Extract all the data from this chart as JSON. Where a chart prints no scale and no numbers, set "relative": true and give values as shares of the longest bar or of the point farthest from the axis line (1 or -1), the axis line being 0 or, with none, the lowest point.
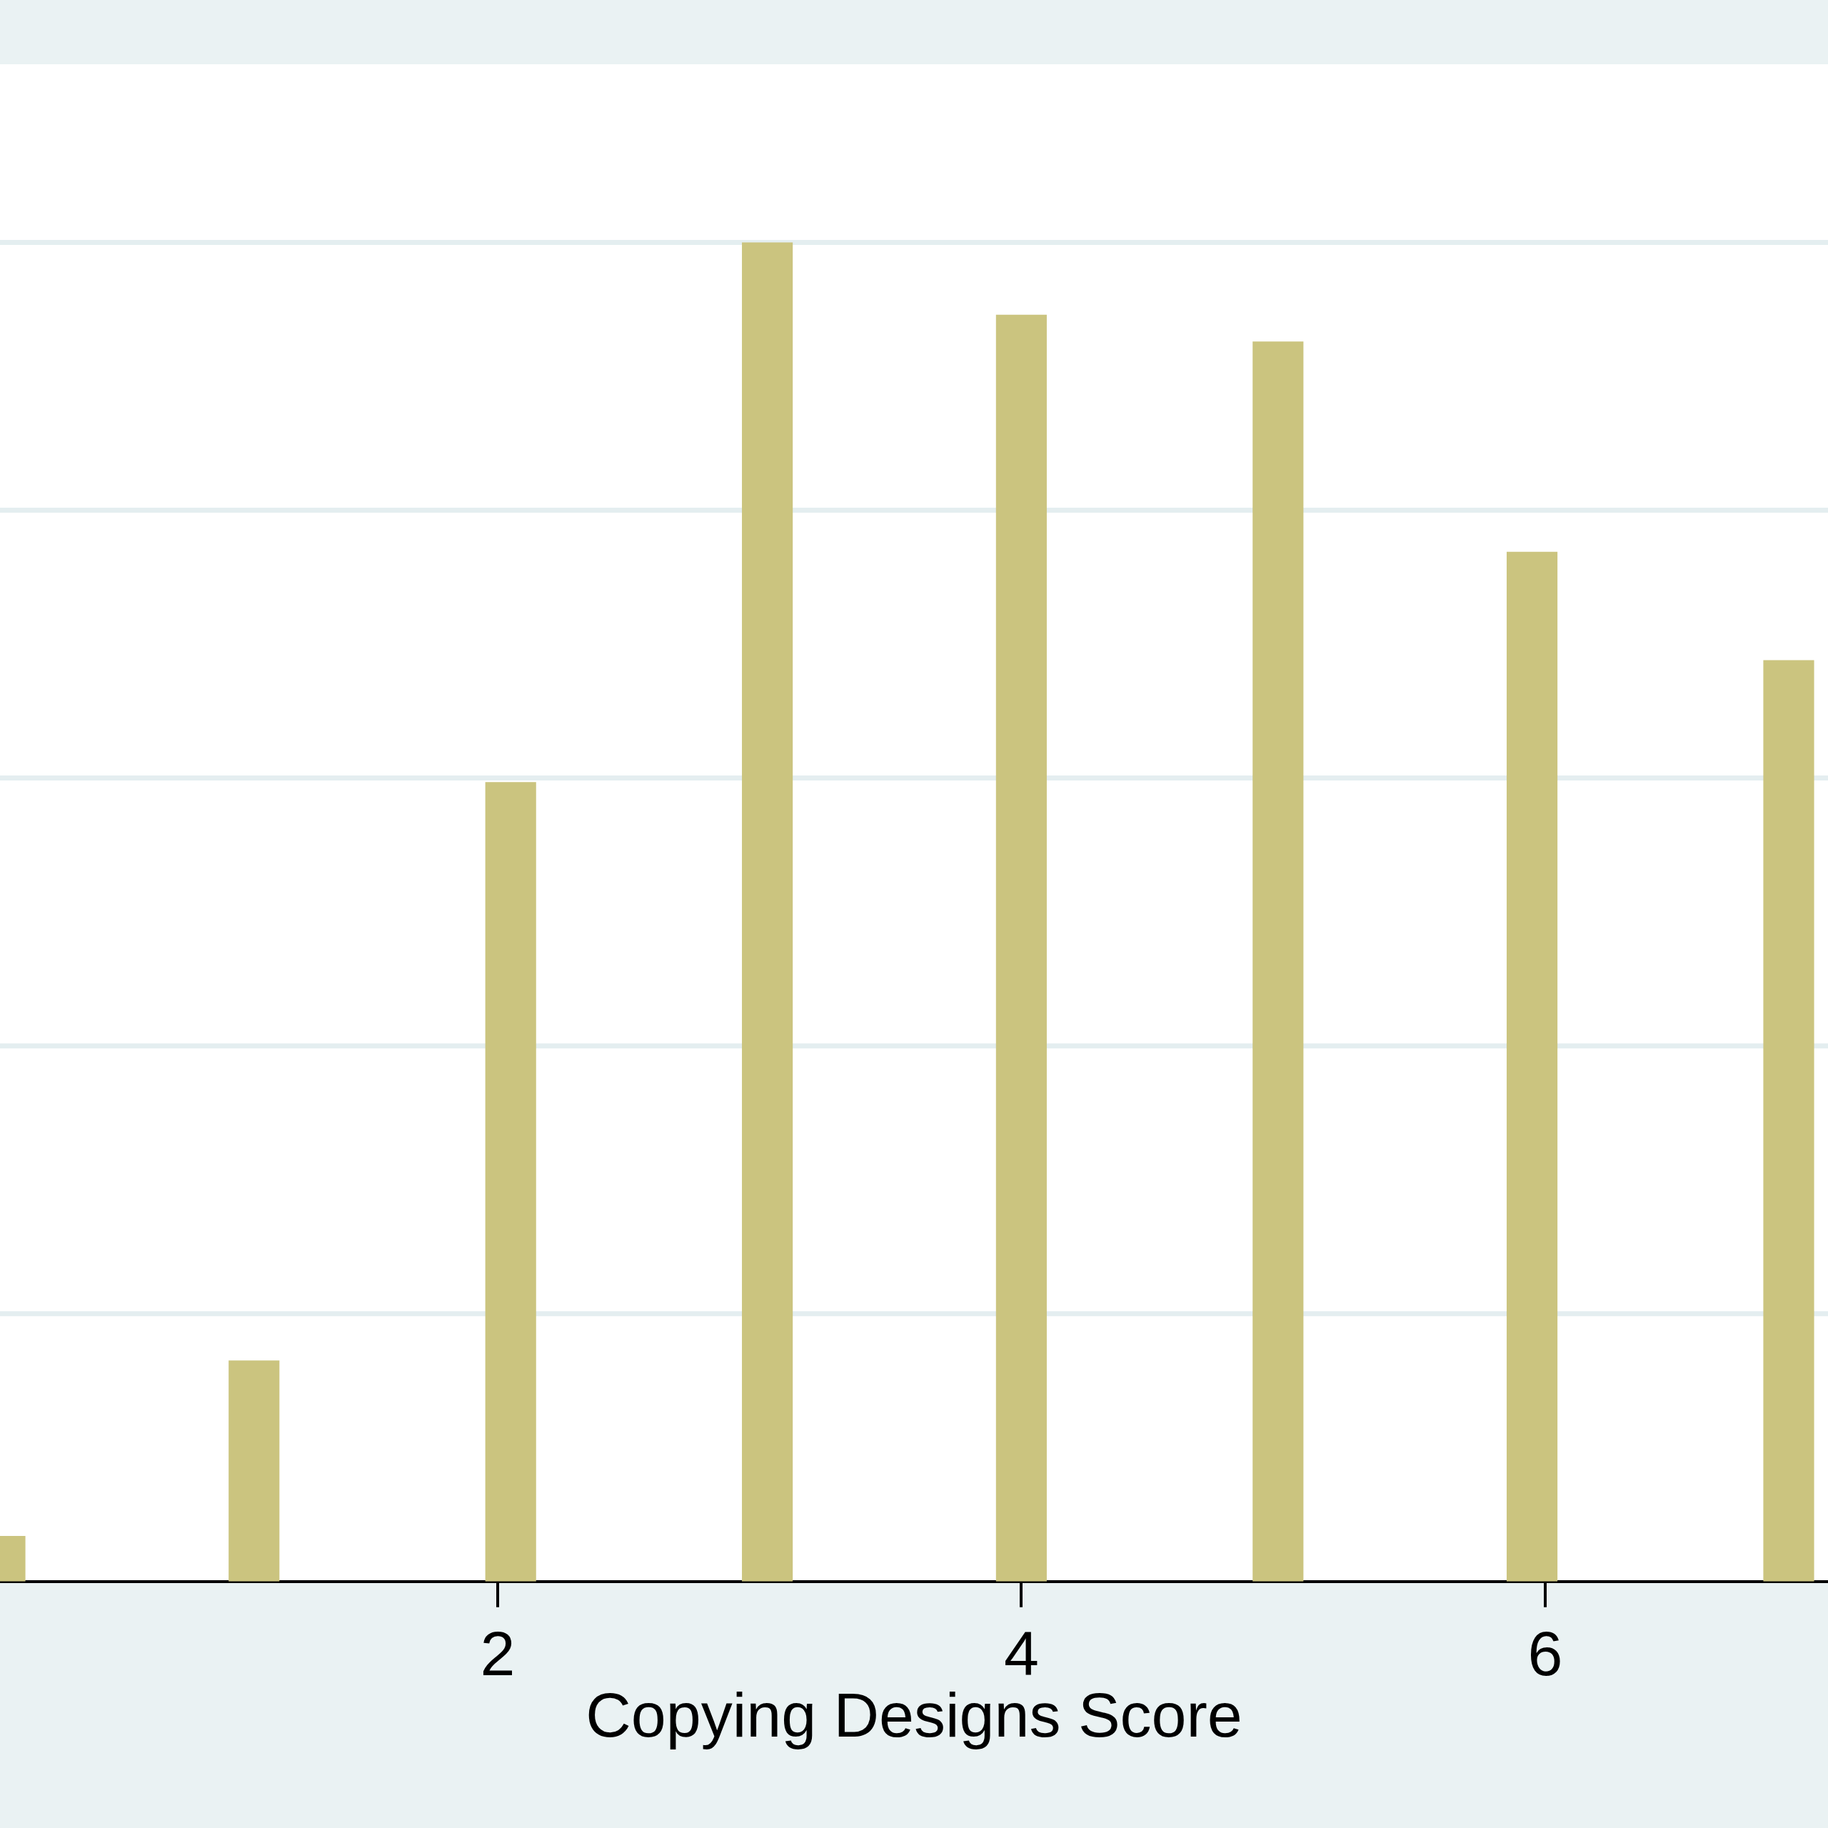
{
  "chart_data": {
    "type": "bar",
    "xlabel": "Copying Designs Score",
    "x": [
      0.1,
      1.07,
      2.05,
      3.03,
      4,
      4.98,
      5.95,
      6.93
    ],
    "values": [
      0.034,
      0.165,
      0.597,
      1,
      0.946,
      0.926,
      0.769,
      0.688
    ],
    "color": "#cbc47f",
    "relative": true,
    "xlim": [
      0.1,
      7.08
    ],
    "xticks": [
      2,
      4,
      6
    ],
    "grid": "y"
  }
}
